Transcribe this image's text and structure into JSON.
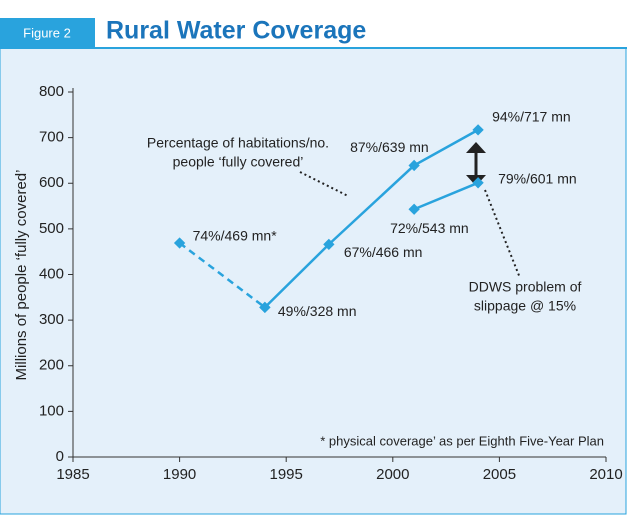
{
  "figure_label": "Figure 2",
  "chart_data": {
    "type": "line",
    "title": "Rural Water Coverage",
    "y_label": "Millions of people ‘fully covered’",
    "xlim": [
      1985,
      2010
    ],
    "xticks": [
      1985,
      1990,
      1995,
      2000,
      2005,
      2010
    ],
    "ylim": [
      0,
      800
    ],
    "yticks": [
      0,
      100,
      200,
      300,
      400,
      500,
      600,
      700,
      800
    ],
    "series": [
      {
        "color": "#29a3dd",
        "dashed": true,
        "x": [
          1990,
          1994
        ],
        "values": [
          469,
          328
        ],
        "value_labels": [
          "74%/469 mn*",
          null
        ]
      },
      {
        "color": "#29a3dd",
        "dashed": false,
        "x": [
          1994,
          1997,
          2001,
          2004
        ],
        "values": [
          328,
          466,
          639,
          717
        ],
        "value_labels": [
          "49%/328 mn",
          "67%/466 mn",
          "87%/639 mn",
          "94%/717 mn"
        ]
      },
      {
        "color": "#29a3dd",
        "dashed": false,
        "x": [
          2001,
          2004
        ],
        "values": [
          543,
          601
        ],
        "value_labels": [
          "72%/543 mn",
          "79%/601 mn"
        ]
      }
    ],
    "annotations": [
      {
        "lines": [
          "Percentage of habitations/no.",
          "people ‘fully covered’"
        ]
      },
      {
        "lines": [
          "DDWS problem of",
          "slippage @ 15%"
        ]
      },
      {
        "lines": [
          "* physical coverage’ as per Eighth Five-Year Plan"
        ]
      }
    ]
  }
}
